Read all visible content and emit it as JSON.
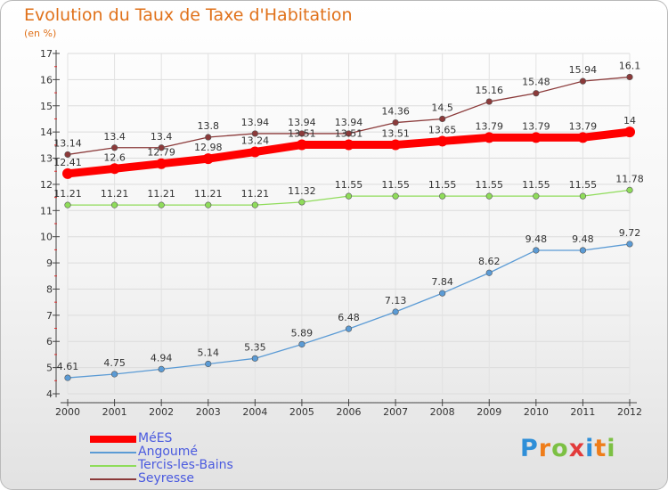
{
  "title": "Evolution du Taux de Taxe d'Habitation",
  "subtitle": "(en %)",
  "logo": {
    "letters": [
      "P",
      "r",
      "o",
      "x",
      "i",
      "t",
      "i"
    ],
    "colors": [
      "#2f8fd8",
      "#ef7d1a",
      "#7cc043",
      "#e23b3b",
      "#2f8fd8",
      "#ef7d1a",
      "#7cc043"
    ]
  },
  "chart_data": {
    "type": "line",
    "title": "Evolution du Taux de Taxe d'Habitation",
    "ylabel": "(en %)",
    "xlabel": "",
    "x": [
      "2000",
      "2001",
      "2002",
      "2003",
      "2004",
      "2005",
      "2006",
      "2007",
      "2008",
      "2009",
      "2010",
      "2011",
      "2012"
    ],
    "ylim": [
      4,
      17
    ],
    "yticks": [
      "4",
      "5",
      "6",
      "7",
      "8",
      "9",
      "10",
      "11",
      "12",
      "13",
      "14",
      "15",
      "16",
      "17"
    ],
    "legend_position": "bottom-left",
    "series": [
      {
        "name": "MéES",
        "color": "#ff0000",
        "values": [
          12.41,
          12.6,
          12.79,
          12.98,
          13.24,
          13.51,
          13.51,
          13.51,
          13.65,
          13.79,
          13.79,
          13.79,
          14
        ],
        "labels": [
          "12.41",
          "12.6",
          "12.79",
          "12.98",
          "13.24",
          "13.51",
          "13.51",
          "13.51",
          "13.65",
          "13.79",
          "13.79",
          "13.79",
          "14"
        ]
      },
      {
        "name": "Angoumé",
        "color": "#5b9bd5",
        "values": [
          4.61,
          4.75,
          4.94,
          5.14,
          5.35,
          5.89,
          6.48,
          7.13,
          7.84,
          8.62,
          9.48,
          9.48,
          9.72
        ],
        "labels": [
          "4.61",
          "4.75",
          "4.94",
          "5.14",
          "5.35",
          "5.89",
          "6.48",
          "7.13",
          "7.84",
          "8.62",
          "9.48",
          "9.48",
          "9.72"
        ]
      },
      {
        "name": "Tercis-les-Bains",
        "color": "#8fdc5a",
        "values": [
          11.21,
          11.21,
          11.21,
          11.21,
          11.21,
          11.32,
          11.55,
          11.55,
          11.55,
          11.55,
          11.55,
          11.55,
          11.78
        ],
        "labels": [
          "11.21",
          "11.21",
          "11.21",
          "11.21",
          "11.21",
          "11.32",
          "11.55",
          "11.55",
          "11.55",
          "11.55",
          "11.55",
          "11.55",
          "11.78"
        ]
      },
      {
        "name": "Seyresse",
        "color": "#8b3a3a",
        "values": [
          13.14,
          13.4,
          13.4,
          13.8,
          13.94,
          13.94,
          13.94,
          14.36,
          14.5,
          15.16,
          15.48,
          15.94,
          16.1
        ],
        "labels": [
          "13.14",
          "13.4",
          "13.4",
          "13.8",
          "13.94",
          "13.94",
          "13.94",
          "14.36",
          "14.5",
          "15.16",
          "15.48",
          "15.94",
          "16.1"
        ]
      }
    ]
  }
}
